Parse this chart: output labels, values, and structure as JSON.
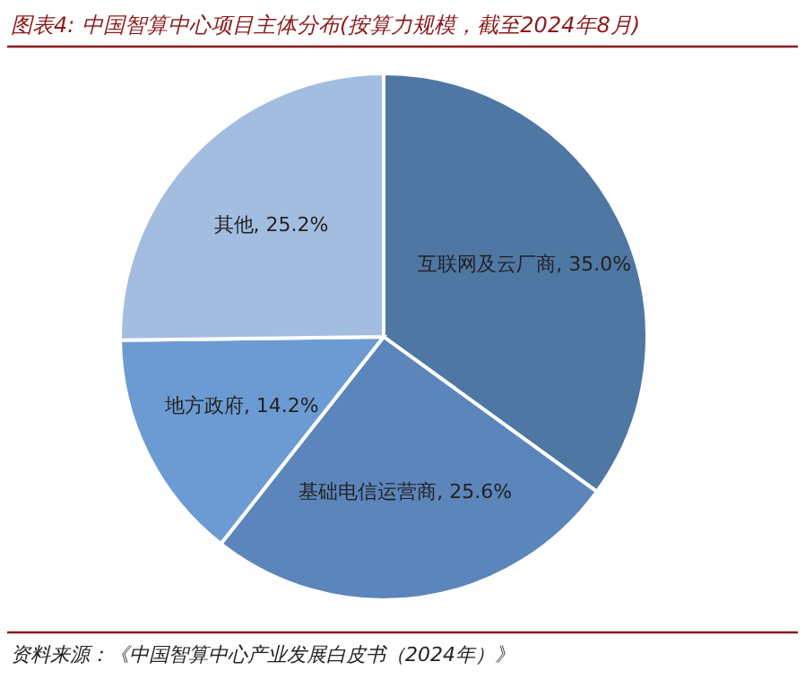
{
  "chart_data": {
    "type": "pie",
    "title": "图表4:  中国智算中心项目主体分布(按算力规模，截至2024年8月)",
    "categories": [
      "互联网及云厂商",
      "基础电信运营商",
      "地方政府",
      "其他"
    ],
    "values": [
      35.0,
      25.6,
      14.2,
      25.2
    ],
    "value_labels": [
      "35.0%",
      "25.6%",
      "14.2%",
      "25.2%"
    ],
    "colors": [
      "#4f77a4",
      "#5c86bb",
      "#6c9bd3",
      "#a3bde0"
    ],
    "annotations": [
      "资料来源：《中国智算中心产业发展白皮书（2024年）》"
    ]
  }
}
